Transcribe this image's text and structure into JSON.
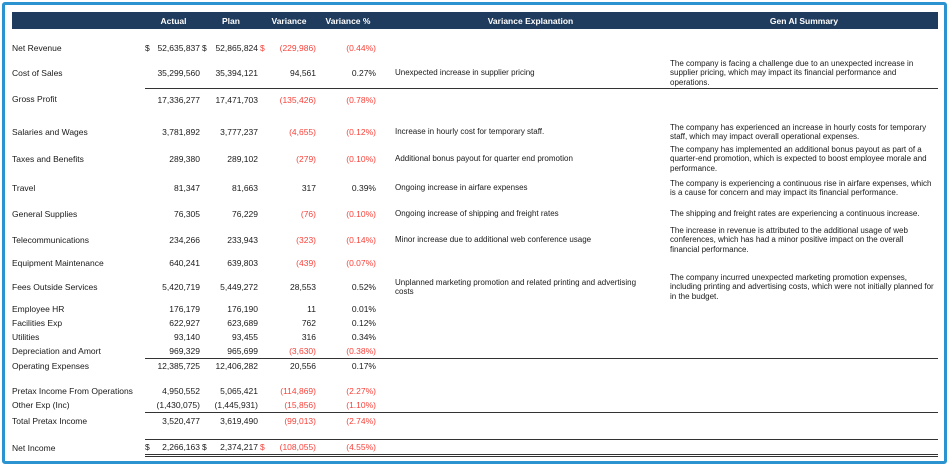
{
  "colors": {
    "header_bg": "#1f3b5d",
    "frame_border": "#2b93d0",
    "negative": "#f8423a"
  },
  "header": {
    "columns": [
      "",
      "Actual",
      "Plan",
      "Variance",
      "Variance %",
      "Variance Explanation",
      "Gen AI Summary"
    ]
  },
  "rows": [
    {
      "label": "Net Revenue",
      "dollar": "$",
      "actual": "52,635,837",
      "plan": "52,865,824",
      "variance": "(229,986)",
      "variance_pct": "(0.44%)",
      "explanation": "",
      "summary": ""
    },
    {
      "label": "Cost of Sales",
      "dollar": "",
      "actual": "35,299,560",
      "plan": "35,394,121",
      "variance": "94,561",
      "variance_pct": "0.27%",
      "explanation": "Unexpected increase in supplier pricing",
      "summary": "The company is facing a challenge due to an unexpected increase in supplier pricing, which may impact its financial performance and operations."
    },
    {
      "label": "Gross Profit",
      "dollar": "",
      "rule_above": true,
      "actual": "17,336,277",
      "plan": "17,471,703",
      "variance": "(135,426)",
      "variance_pct": "(0.78%)",
      "explanation": "",
      "summary": ""
    },
    {
      "label": "Salaries and Wages",
      "dollar": "",
      "section_start": true,
      "actual": "3,781,892",
      "plan": "3,777,237",
      "variance": "(4,655)",
      "variance_pct": "(0.12%)",
      "explanation": "Increase in hourly cost for temporary staff.",
      "summary": "The company has experienced an increase in hourly costs for temporary staff, which may impact overall operational expenses."
    },
    {
      "label": "Taxes and Benefits",
      "dollar": "",
      "actual": "289,380",
      "plan": "289,102",
      "variance": "(279)",
      "variance_pct": "(0.10%)",
      "explanation": "Additional bonus payout for quarter end promotion",
      "summary": "The company has implemented an additional bonus payout as part of a quarter-end promotion, which is expected to boost employee morale and performance."
    },
    {
      "label": "Travel",
      "dollar": "",
      "actual": "81,347",
      "plan": "81,663",
      "variance": "317",
      "variance_pct": "0.39%",
      "explanation": "Ongoing increase in airfare expenses",
      "summary": "The company is experiencing a continuous rise in airfare expenses, which is a cause for concern and may impact its financial performance."
    },
    {
      "label": "General Supplies",
      "dollar": "",
      "actual": "76,305",
      "plan": "76,229",
      "variance": "(76)",
      "variance_pct": "(0.10%)",
      "explanation": "Ongoing increase of shipping and freight rates",
      "summary": "The shipping and freight rates are experiencing a continuous increase."
    },
    {
      "label": "Telecommunications",
      "dollar": "",
      "actual": "234,266",
      "plan": "233,943",
      "variance": "(323)",
      "variance_pct": "(0.14%)",
      "explanation": "Minor increase due to additional web conference usage",
      "summary": "The increase in revenue is attributed to the additional usage of web conferences, which has had a minor positive impact on the overall financial performance."
    },
    {
      "label": "Equipment Maintenance",
      "dollar": "",
      "actual": "640,241",
      "plan": "639,803",
      "variance": "(439)",
      "variance_pct": "(0.07%)",
      "explanation": "",
      "summary": ""
    },
    {
      "label": "Fees Outside Services",
      "dollar": "",
      "actual": "5,420,719",
      "plan": "5,449,272",
      "variance": "28,553",
      "variance_pct": "0.52%",
      "explanation": "Unplanned marketing promotion and related printing and advertising costs",
      "summary": "The company incurred unexpected marketing promotion expenses, including printing and advertising costs, which were not initially planned for in the budget."
    },
    {
      "label": "Employee HR",
      "dollar": "",
      "actual": "176,179",
      "plan": "176,190",
      "variance": "11",
      "variance_pct": "0.01%",
      "explanation": "",
      "summary": ""
    },
    {
      "label": "Facilities Exp",
      "dollar": "",
      "actual": "622,927",
      "plan": "623,689",
      "variance": "762",
      "variance_pct": "0.12%",
      "explanation": "",
      "summary": ""
    },
    {
      "label": "Utilities",
      "dollar": "",
      "actual": "93,140",
      "plan": "93,455",
      "variance": "316",
      "variance_pct": "0.34%",
      "explanation": "",
      "summary": ""
    },
    {
      "label": "Depreciation and Amort",
      "dollar": "",
      "actual": "969,329",
      "plan": "965,699",
      "variance": "(3,630)",
      "variance_pct": "(0.38%)",
      "explanation": "",
      "summary": ""
    },
    {
      "label": "Operating Expenses",
      "dollar": "",
      "rule_above": true,
      "actual": "12,385,725",
      "plan": "12,406,282",
      "variance": "20,556",
      "variance_pct": "0.17%",
      "explanation": "",
      "summary": ""
    },
    {
      "label": "Pretax Income From Operations",
      "dollar": "",
      "section_start": true,
      "actual": "4,950,552",
      "plan": "5,065,421",
      "variance": "(114,869)",
      "variance_pct": "(2.27%)",
      "explanation": "",
      "summary": ""
    },
    {
      "label": "Other Exp (Inc)",
      "dollar": "",
      "actual": "(1,430,075)",
      "plan": "(1,445,931)",
      "variance": "(15,856)",
      "variance_pct": "(1.10%)",
      "explanation": "",
      "summary": ""
    },
    {
      "label": "Total Pretax Income",
      "dollar": "",
      "rule_above": true,
      "actual": "3,520,477",
      "plan": "3,619,490",
      "variance": "(99,013)",
      "variance_pct": "(2.74%)",
      "explanation": "",
      "summary": ""
    },
    {
      "label": "Net Income",
      "dollar": "$",
      "section_start": true,
      "rule_above": true,
      "double_rule_below": true,
      "actual": "2,266,163",
      "plan": "2,374,217",
      "variance": "(108,055)",
      "variance_pct": "(4.55%)",
      "explanation": "",
      "summary": ""
    }
  ]
}
